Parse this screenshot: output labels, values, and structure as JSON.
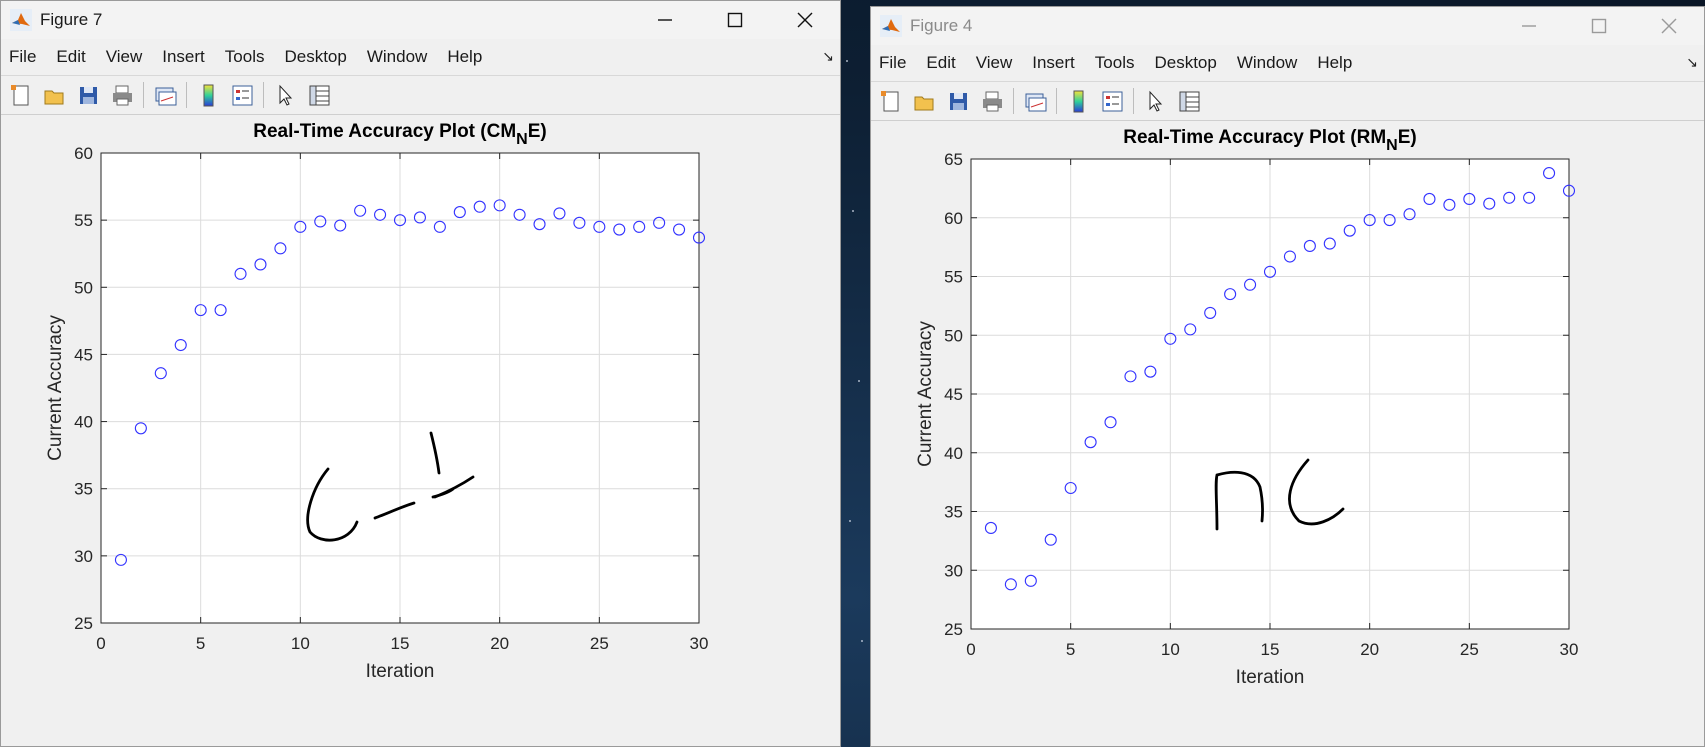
{
  "windows": [
    {
      "title": "Figure 7",
      "active": true,
      "menu": [
        "File",
        "Edit",
        "View",
        "Insert",
        "Tools",
        "Desktop",
        "Window",
        "Help"
      ],
      "handwriting": "C-J"
    },
    {
      "title": "Figure 4",
      "active": false,
      "menu": [
        "File",
        "Edit",
        "View",
        "Insert",
        "Tools",
        "Desktop",
        "Window",
        "Help"
      ],
      "handwriting": "NC"
    }
  ],
  "toolbar_icons": [
    "new-figure-icon",
    "open-file-icon",
    "save-icon",
    "print-icon",
    "link-plot-icon",
    "colorbar-icon",
    "legend-icon",
    "edit-plot-icon",
    "property-inspector-icon"
  ],
  "colors": {
    "marker": "#3333ff",
    "grid": "#dcdcdc",
    "axes_bg": "#ffffff"
  },
  "chart_data": [
    {
      "type": "scatter",
      "title_main": "Real-Time Accuracy Plot (CM",
      "title_sub": "N",
      "title_end": "E)",
      "xlabel": "Iteration",
      "ylabel": "Current Accuracy",
      "xlim": [
        0,
        30
      ],
      "ylim": [
        25,
        60
      ],
      "xticks": [
        0,
        5,
        10,
        15,
        20,
        25,
        30
      ],
      "yticks": [
        25,
        30,
        35,
        40,
        45,
        50,
        55,
        60
      ],
      "x": [
        1,
        2,
        3,
        4,
        5,
        6,
        7,
        8,
        9,
        10,
        11,
        12,
        13,
        14,
        15,
        16,
        17,
        18,
        19,
        20,
        21,
        22,
        23,
        24,
        25,
        26,
        27,
        28,
        29,
        30
      ],
      "y": [
        29.7,
        39.5,
        43.6,
        45.7,
        48.3,
        48.3,
        51.0,
        51.7,
        52.9,
        54.5,
        54.9,
        54.6,
        55.7,
        55.4,
        55.0,
        55.2,
        54.5,
        55.6,
        56.0,
        56.1,
        55.4,
        54.7,
        55.5,
        54.8,
        54.5,
        54.3,
        54.5,
        54.8,
        54.3,
        53.7
      ]
    },
    {
      "type": "scatter",
      "title_main": "Real-Time Accuracy Plot (RM",
      "title_sub": "N",
      "title_end": "E)",
      "xlabel": "Iteration",
      "ylabel": "Current Accuracy",
      "xlim": [
        0,
        30
      ],
      "ylim": [
        25,
        65
      ],
      "xticks": [
        0,
        5,
        10,
        15,
        20,
        25,
        30
      ],
      "yticks": [
        25,
        30,
        35,
        40,
        45,
        50,
        55,
        60,
        65
      ],
      "x": [
        1,
        2,
        3,
        4,
        5,
        6,
        7,
        8,
        9,
        10,
        11,
        12,
        13,
        14,
        15,
        16,
        17,
        18,
        19,
        20,
        21,
        22,
        23,
        24,
        25,
        26,
        27,
        28,
        29,
        30
      ],
      "y": [
        33.6,
        28.8,
        29.1,
        32.6,
        37.0,
        40.9,
        42.6,
        46.5,
        46.9,
        49.7,
        50.5,
        51.9,
        53.5,
        54.3,
        55.4,
        56.7,
        57.6,
        57.8,
        58.9,
        59.8,
        59.8,
        60.3,
        61.6,
        61.1,
        61.6,
        61.2,
        61.7,
        61.7,
        63.8,
        62.3
      ]
    }
  ]
}
